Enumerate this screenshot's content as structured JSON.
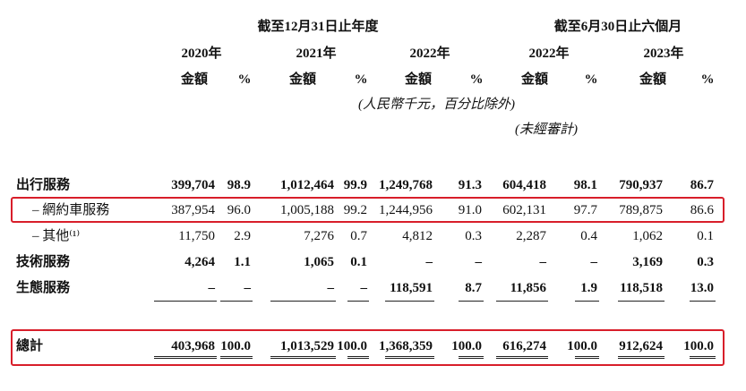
{
  "header": {
    "period_full_year": "截至12月31日止年度",
    "period_half_year": "截至6月30日止六個月",
    "years": [
      "2020年",
      "2021年",
      "2022年",
      "2022年",
      "2023年"
    ],
    "col_amount": "金額",
    "col_pct": "%",
    "unit_note": "(人民幣千元，百分比除外)",
    "unaudited_note": "(未經審計)"
  },
  "rows": [
    {
      "label": "出行服務",
      "values": [
        "399,704",
        "98.9",
        "1,012,464",
        "99.9",
        "1,249,768",
        "91.3",
        "604,418",
        "98.1",
        "790,937",
        "86.7"
      ],
      "bold": true
    },
    {
      "label": "– 網約車服務",
      "values": [
        "387,954",
        "96.0",
        "1,005,188",
        "99.2",
        "1,244,956",
        "91.0",
        "602,131",
        "97.7",
        "789,875",
        "86.6"
      ],
      "bold": false
    },
    {
      "label": "– 其他⁽¹⁾",
      "values": [
        "11,750",
        "2.9",
        "7,276",
        "0.7",
        "4,812",
        "0.3",
        "2,287",
        "0.4",
        "1,062",
        "0.1"
      ],
      "bold": false
    },
    {
      "label": "技術服務",
      "values": [
        "4,264",
        "1.1",
        "1,065",
        "0.1",
        "–",
        "–",
        "–",
        "–",
        "3,169",
        "0.3"
      ],
      "bold": true
    },
    {
      "label": "生態服務",
      "values": [
        "–",
        "–",
        "–",
        "–",
        "118,591",
        "8.7",
        "11,856",
        "1.9",
        "118,518",
        "13.0"
      ],
      "bold": true
    }
  ],
  "total": {
    "label": "總計",
    "values": [
      "403,968",
      "100.0",
      "1,013,529",
      "100.0",
      "1,368,359",
      "100.0",
      "616,274",
      "100.0",
      "912,624",
      "100.0"
    ]
  },
  "highlight_color": "#d81e2a"
}
